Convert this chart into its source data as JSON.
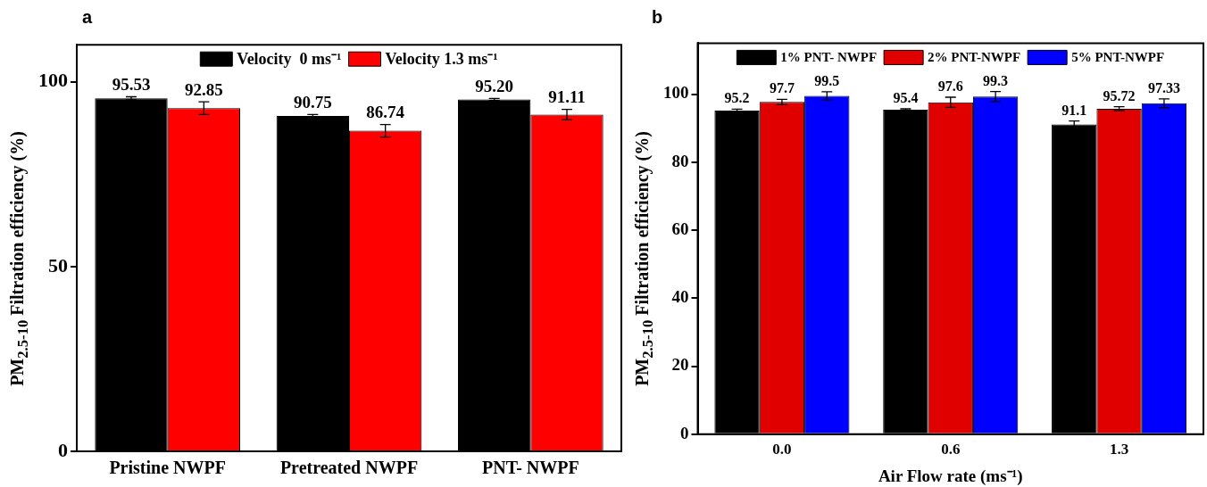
{
  "chart_data": [
    {
      "type": "bar",
      "title": "a",
      "ylabel": "PM$_{2.5-10}$ Filtration efficiency (%)",
      "categories": [
        "Pristine NWPF",
        "Pretreated NWPF",
        "PNT- NWPF"
      ],
      "series": [
        {
          "name": "Velocity  0 ms⁻¹",
          "color": "#000000",
          "values": [
            95.53,
            90.75,
            95.2
          ],
          "errors": [
            0.4,
            0.4,
            0.3
          ],
          "value_labels": [
            "95.53",
            "90.75",
            "95.20"
          ]
        },
        {
          "name": "Velocity 1.3 ms⁻¹",
          "color": "#ff0000",
          "values": [
            92.85,
            86.74,
            91.11
          ],
          "errors": [
            1.7,
            1.7,
            1.4
          ],
          "value_labels": [
            "92.85",
            "86.74",
            "91.11"
          ]
        }
      ],
      "ylim": [
        0,
        110
      ],
      "yticks": [
        0,
        50,
        100
      ],
      "grid": false,
      "legend": "top"
    },
    {
      "type": "bar",
      "title": "b",
      "ylabel": "PM$_{2.5-10}$ Filtration efficiency (%)",
      "xlabel": "Air Flow rate (ms⁻¹)",
      "categories": [
        "0.0",
        "0.6",
        "1.3"
      ],
      "series": [
        {
          "name": "1% PNT- NWPF",
          "color": "#000000",
          "values": [
            95.2,
            95.4,
            91.1
          ],
          "errors": [
            0.4,
            0.3,
            1.0
          ]
        },
        {
          "name": "2% PNT-NWPF",
          "color": "#e00000",
          "values": [
            97.7,
            97.6,
            95.72
          ],
          "errors": [
            0.8,
            1.5,
            0.6
          ]
        },
        {
          "name": "5% PNT-NWPF",
          "color": "#0000ff",
          "values": [
            99.5,
            99.3,
            97.33
          ],
          "errors": [
            1.2,
            1.5,
            1.3
          ]
        }
      ],
      "ylim": [
        0,
        115
      ],
      "yticks": [
        0,
        20,
        40,
        60,
        80,
        100
      ],
      "grid": false,
      "legend": "top",
      "data_labels": true
    }
  ]
}
